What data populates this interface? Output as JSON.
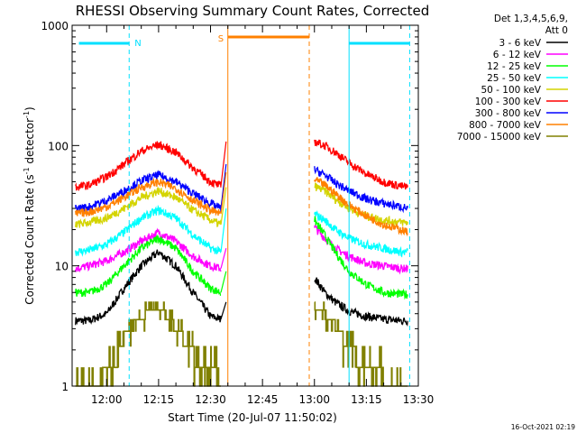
{
  "chart_data": {
    "type": "line",
    "title": "RHESSI Observing Summary Count Rates, Corrected",
    "xlabel": "Start Time (20-Jul-07 11:50:02)",
    "ylabel": "Corrected Count Rate (s⁻¹ detector⁻¹)",
    "ylabel_main": "Corrected Count Rate (s",
    "ylabel_sup1": "-1",
    "ylabel_mid": " detector",
    "ylabel_sup2": "-1",
    "ylabel_end": ")",
    "yscale": "log",
    "ylim": [
      1,
      1000
    ],
    "xlim": [
      "11:50:02",
      "13:30:00"
    ],
    "x_ticks": [
      "12:00",
      "12:15",
      "12:30",
      "12:45",
      "13:00",
      "13:15",
      "13:30"
    ],
    "y_ticks": [
      "1",
      "10",
      "100",
      "1000"
    ],
    "timestamp": "16-Oct-2021 02:19",
    "legend": {
      "placement": "right",
      "header": [
        "Det 1,3,4,5,6,9,",
        "Att 0"
      ],
      "entries": [
        {
          "label": "3 - 6 keV",
          "color": "#000000"
        },
        {
          "label": "6 - 12 keV",
          "color": "#ff00ff"
        },
        {
          "label": "12 - 25 keV",
          "color": "#00ff00"
        },
        {
          "label": "25 - 50 keV",
          "color": "#00ffff"
        },
        {
          "label": "50 - 100 keV",
          "color": "#d4d400"
        },
        {
          "label": "100 - 300 keV",
          "color": "#ff0000"
        },
        {
          "label": "300 - 800 keV",
          "color": "#0000ff"
        },
        {
          "label": "800 - 7000 keV",
          "color": "#ff8000"
        },
        {
          "label": "7000 - 15000 keV",
          "color": "#808000"
        }
      ]
    },
    "flags": [
      {
        "label": "N",
        "color": "#00e0ff",
        "from": "11:52:00",
        "to": "12:06:30"
      },
      {
        "label": "N",
        "color": "#00e0ff",
        "from": "13:10:00",
        "to": "13:27:30"
      },
      {
        "label": "S",
        "color": "#ff8000",
        "from": "12:35:00",
        "to": "12:58:30"
      }
    ],
    "markers": [
      {
        "time": "11:50:02",
        "color": "#00e0ff",
        "style": "solid"
      },
      {
        "time": "12:06:30",
        "color": "#00e0ff",
        "style": "dashed"
      },
      {
        "time": "12:35:00",
        "color": "#ff8000",
        "style": "solid"
      },
      {
        "time": "12:58:30",
        "color": "#ff8000",
        "style": "dashed"
      },
      {
        "time": "13:10:00",
        "color": "#00e0ff",
        "style": "solid"
      },
      {
        "time": "13:27:30",
        "color": "#00e0ff",
        "style": "dashed"
      }
    ],
    "series": [
      {
        "name": "3 - 6 keV",
        "color": "#000000",
        "segments": [
          {
            "x": [
              "11:51",
              "11:55",
              "12:00",
              "12:05",
              "12:10",
              "12:15",
              "12:20",
              "12:25",
              "12:30",
              "12:33"
            ],
            "y": [
              3.5,
              3.5,
              4,
              6.5,
              10,
              13,
              10,
              6,
              3.8,
              3.6
            ]
          },
          {
            "x": [
              "13:00",
              "13:03",
              "13:06",
              "13:10",
              "13:15",
              "13:20",
              "13:25",
              "13:27"
            ],
            "y": [
              8,
              6,
              5,
              4.2,
              3.8,
              3.6,
              3.5,
              3.5
            ]
          }
        ]
      },
      {
        "name": "6 - 12 keV",
        "color": "#ff00ff",
        "segments": [
          {
            "x": [
              "11:51",
              "11:55",
              "12:00",
              "12:05",
              "12:10",
              "12:15",
              "12:20",
              "12:25",
              "12:30",
              "12:33"
            ],
            "y": [
              9.5,
              10,
              11,
              13,
              16,
              19,
              16,
              12,
              10,
              9.5
            ]
          },
          {
            "x": [
              "13:00",
              "13:03",
              "13:06",
              "13:10",
              "13:15",
              "13:20",
              "13:25",
              "13:27"
            ],
            "y": [
              21,
              17,
              14,
              12,
              10.5,
              10,
              9.5,
              9.5
            ]
          }
        ]
      },
      {
        "name": "12 - 25 keV",
        "color": "#00ff00",
        "segments": [
          {
            "x": [
              "11:51",
              "11:55",
              "12:00",
              "12:05",
              "12:10",
              "12:15",
              "12:20",
              "12:25",
              "12:30",
              "12:33"
            ],
            "y": [
              6,
              6,
              7,
              10,
              14,
              17,
              14,
              9,
              6.5,
              6
            ]
          },
          {
            "x": [
              "13:00",
              "13:03",
              "13:06",
              "13:10",
              "13:15",
              "13:20",
              "13:25",
              "13:27"
            ],
            "y": [
              24,
              18,
              13,
              9,
              7,
              6,
              5.8,
              5.8
            ]
          }
        ]
      },
      {
        "name": "25 - 50 keV",
        "color": "#00ffff",
        "segments": [
          {
            "x": [
              "11:51",
              "11:55",
              "12:00",
              "12:05",
              "12:10",
              "12:15",
              "12:20",
              "12:25",
              "12:30",
              "12:33"
            ],
            "y": [
              13,
              13.5,
              15,
              19,
              25,
              29,
              25,
              18,
              14,
              13
            ]
          },
          {
            "x": [
              "13:00",
              "13:03",
              "13:06",
              "13:10",
              "13:15",
              "13:20",
              "13:25",
              "13:27"
            ],
            "y": [
              27,
              24,
              20,
              17,
              15,
              14,
              13,
              13
            ]
          }
        ]
      },
      {
        "name": "50 - 100 keV",
        "color": "#d4d400",
        "segments": [
          {
            "x": [
              "11:51",
              "11:55",
              "12:00",
              "12:05",
              "12:10",
              "12:15",
              "12:20",
              "12:25",
              "12:30",
              "12:33"
            ],
            "y": [
              22,
              23,
              25,
              30,
              37,
              42,
              37,
              29,
              24,
              22
            ]
          },
          {
            "x": [
              "13:00",
              "13:03",
              "13:06",
              "13:10",
              "13:15",
              "13:20",
              "13:25",
              "13:27"
            ],
            "y": [
              46,
              42,
              36,
              30,
              26,
              24,
              23,
              23
            ]
          }
        ]
      },
      {
        "name": "100 - 300 keV",
        "color": "#ff0000",
        "segments": [
          {
            "x": [
              "11:51",
              "11:55",
              "12:00",
              "12:05",
              "12:10",
              "12:15",
              "12:20",
              "12:25",
              "12:30",
              "12:33"
            ],
            "y": [
              45,
              47,
              55,
              70,
              90,
              102,
              88,
              65,
              50,
              46
            ]
          },
          {
            "x": [
              "13:00",
              "13:03",
              "13:06",
              "13:10",
              "13:15",
              "13:20",
              "13:25",
              "13:27"
            ],
            "y": [
              108,
              100,
              88,
              72,
              58,
              50,
              46,
              45
            ]
          }
        ]
      },
      {
        "name": "300 - 800 keV",
        "color": "#0000ff",
        "segments": [
          {
            "x": [
              "11:51",
              "11:55",
              "12:00",
              "12:05",
              "12:10",
              "12:15",
              "12:20",
              "12:25",
              "12:30",
              "12:33"
            ],
            "y": [
              30,
              31,
              35,
              42,
              51,
              57,
              50,
              40,
              33,
              30
            ]
          },
          {
            "x": [
              "13:00",
              "13:03",
              "13:06",
              "13:10",
              "13:15",
              "13:20",
              "13:25",
              "13:27"
            ],
            "y": [
              63,
              57,
              49,
              42,
              36,
              33,
              31,
              30
            ]
          }
        ]
      },
      {
        "name": "800 - 7000 keV",
        "color": "#ff8000",
        "segments": [
          {
            "x": [
              "11:51",
              "11:55",
              "12:00",
              "12:05",
              "12:10",
              "12:15",
              "12:20",
              "12:25",
              "12:30",
              "12:33"
            ],
            "y": [
              27,
              28,
              31,
              37,
              45,
              50,
              44,
              35,
              29,
              27
            ]
          },
          {
            "x": [
              "13:00",
              "13:03",
              "13:06",
              "13:10",
              "13:15",
              "13:20",
              "13:25",
              "13:27"
            ],
            "y": [
              52,
              47,
              40,
              32,
              26,
              22,
              20,
              19
            ]
          }
        ]
      },
      {
        "name": "7000 - 15000 keV",
        "color": "#808000",
        "segments": [
          {
            "x": [
              "11:51",
              "11:58",
              "12:02",
              "12:05",
              "12:08",
              "12:12",
              "12:15",
              "12:18",
              "12:21",
              "12:24",
              "12:27",
              "12:30",
              "12:33"
            ],
            "y": [
              1.0,
              1.0,
              1.5,
              2.5,
              3.3,
              4.2,
              4.5,
              3.6,
              2.8,
              2.0,
              1.5,
              1.2,
              1.0
            ]
          },
          {
            "x": [
              "13:00",
              "13:03",
              "13:06",
              "13:09",
              "13:12",
              "13:15",
              "13:18",
              "13:21",
              "13:24",
              "13:27"
            ],
            "y": [
              4.5,
              4.0,
              3.2,
              2.3,
              1.8,
              1.4,
              1.2,
              1.0,
              1.0,
              1.0
            ]
          }
        ]
      }
    ]
  }
}
